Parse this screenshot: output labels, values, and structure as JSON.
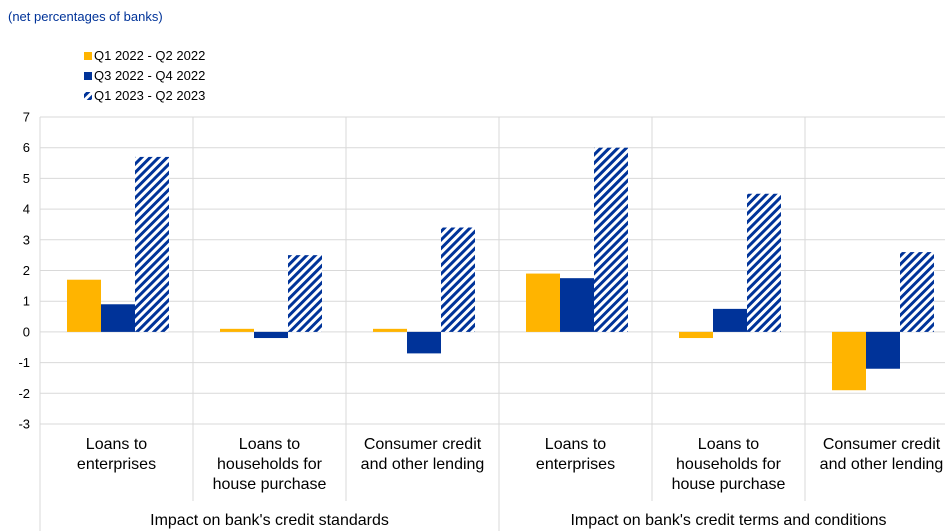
{
  "subtitle": "(net percentages of banks)",
  "colors": {
    "series1": "#FFB400",
    "series2": "#003399",
    "series3_pattern": "#003399",
    "grid": "#D9D9D9",
    "text": "#000000",
    "subtitle": "#003399"
  },
  "chart_data": {
    "type": "bar",
    "ylim": [
      -3,
      7
    ],
    "yticks": [
      7,
      6,
      5,
      4,
      3,
      2,
      1,
      0,
      -1,
      -2,
      -3
    ],
    "grid": true,
    "legend_position": "top-left",
    "categories": [
      [
        "Loans to",
        "enterprises"
      ],
      [
        "Loans to",
        "households for",
        "house purchase"
      ],
      [
        "Consumer credit",
        "and other lending"
      ],
      [
        "Loans to",
        "enterprises"
      ],
      [
        "Loans to",
        "households for",
        "house purchase"
      ],
      [
        "Consumer credit",
        "and other lending"
      ]
    ],
    "groups": [
      "Impact on bank's credit standards",
      "Impact on bank's credit terms and conditions"
    ],
    "series": [
      {
        "name": "Q1 2022 - Q2 2022",
        "style": "solid-yellow",
        "values": [
          1.7,
          0.1,
          0.1,
          1.9,
          -0.2,
          -1.9
        ]
      },
      {
        "name": "Q3 2022 - Q4 2022",
        "style": "solid-blue",
        "values": [
          0.9,
          -0.2,
          -0.7,
          1.75,
          0.75,
          -1.2
        ]
      },
      {
        "name": "Q1 2023 - Q2 2023",
        "style": "hatched-blue",
        "values": [
          5.7,
          2.5,
          3.4,
          6.0,
          4.5,
          2.6
        ]
      }
    ]
  }
}
